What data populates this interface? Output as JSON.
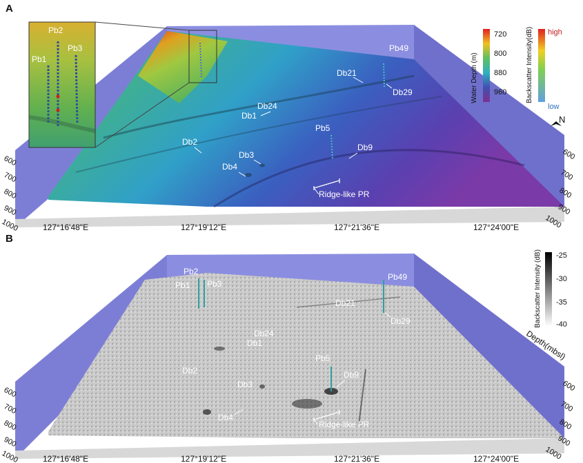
{
  "panel_a": {
    "letter": "A",
    "depth_ticks_left": [
      "600",
      "700",
      "800",
      "900",
      "1000"
    ],
    "depth_ticks_right": [
      "600",
      "700",
      "800",
      "900",
      "1000"
    ],
    "lon_ticks": [
      "127°16'48\"E",
      "127°19'12\"E",
      "127°21'36\"E",
      "127°24'00\"E"
    ],
    "labels": {
      "pb1": "Pb1",
      "pb2": "Pb2",
      "pb3": "Pb3",
      "pb49": "Pb49",
      "pb5": "Pb5",
      "db21": "Db21",
      "db29": "Db29",
      "db24": "Db24",
      "db1": "Db1",
      "db2": "Db2",
      "db3": "Db3",
      "db4": "Db4",
      "db9": "Db9",
      "ridge": "Ridge-like PR"
    },
    "legend": {
      "water_depth_title": "Water Depth (m)",
      "water_depth_ticks": [
        "720",
        "800",
        "880",
        "960"
      ],
      "backscatter_title": "Backscatter Intensity(dB)",
      "high": "high",
      "low": "low"
    },
    "north": "N",
    "colors": {
      "wall": "#7f80d8",
      "deep": "#6a3aa8",
      "shallow": "#d8a020"
    }
  },
  "panel_b": {
    "letter": "B",
    "depth_ticks_left": [
      "600",
      "700",
      "800",
      "900",
      "1000"
    ],
    "depth_ticks_right": [
      "600",
      "700",
      "800",
      "900",
      "1000"
    ],
    "lon_ticks": [
      "127°16'48\"E",
      "127°19'12\"E",
      "127°21'36\"E",
      "127°24'00\"E"
    ],
    "labels": {
      "pb1": "Pb1",
      "pb2": "Pb2",
      "pb3": "Pb3",
      "pb49": "Pb49",
      "pb5": "Pb5",
      "db21": "Db21",
      "db29": "Db29",
      "db24": "Db24",
      "db1": "Db1",
      "db2": "Db2",
      "db3": "Db3",
      "db4": "Db4",
      "db9": "Db9",
      "ridge": "Ridge-like PR"
    },
    "legend": {
      "title": "Backscatter Intensity (dB)",
      "ticks": [
        "-25",
        "-30",
        "-35",
        "-40"
      ]
    },
    "depth_axis": "Depth(mbsl)"
  }
}
